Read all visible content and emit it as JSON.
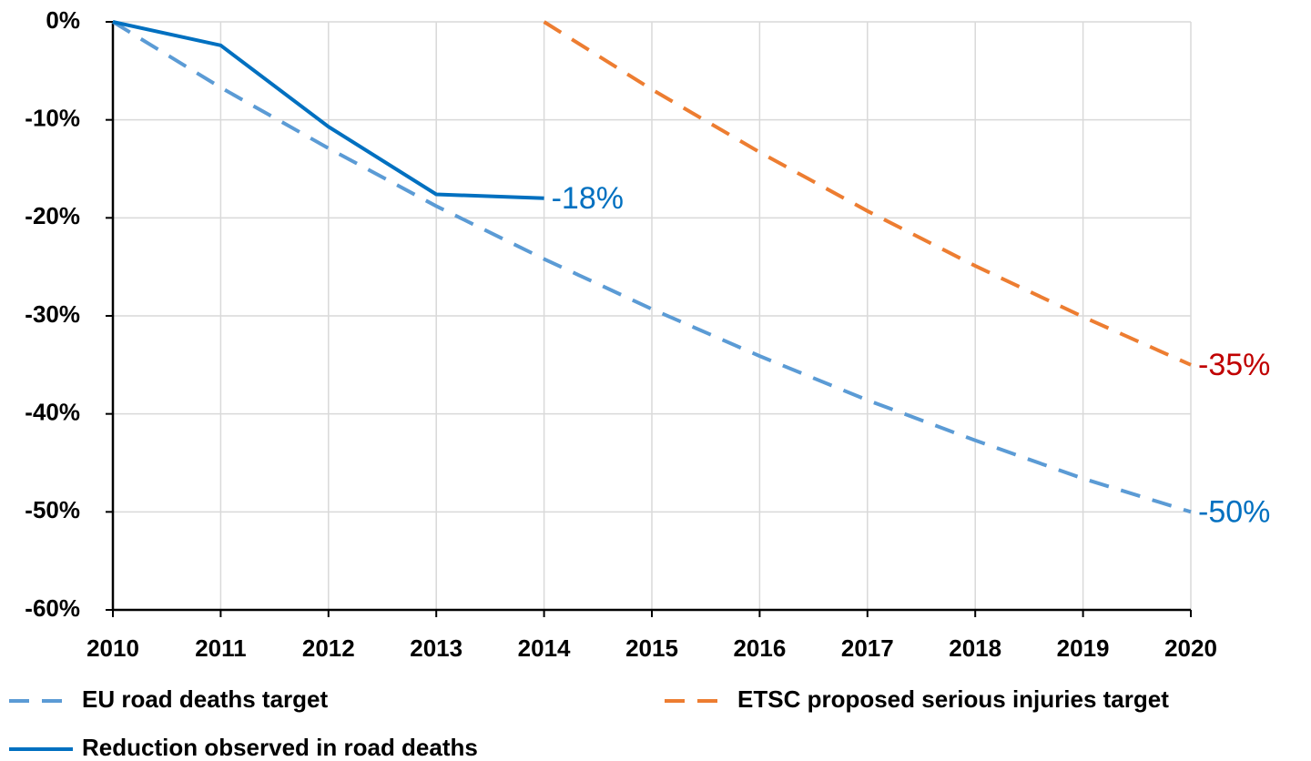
{
  "chart_data": {
    "type": "line",
    "x": [
      2010,
      2011,
      2012,
      2013,
      2014,
      2015,
      2016,
      2017,
      2018,
      2019,
      2020
    ],
    "xlim": [
      2010,
      2020
    ],
    "xticks": [
      2010,
      2011,
      2012,
      2013,
      2014,
      2015,
      2016,
      2017,
      2018,
      2019,
      2020
    ],
    "ylim": [
      -60,
      0
    ],
    "yticks": [
      {
        "value": 0,
        "label": "0%"
      },
      {
        "value": -10,
        "label": "-10%"
      },
      {
        "value": -20,
        "label": "-20%"
      },
      {
        "value": -30,
        "label": "-30%"
      },
      {
        "value": -40,
        "label": "-40%"
      },
      {
        "value": -50,
        "label": "-50%"
      },
      {
        "value": -60,
        "label": "-60%"
      }
    ],
    "grid": true,
    "series": [
      {
        "name": "EU road deaths target",
        "color": "#5b9bd5",
        "dash": true,
        "label_color": "#0070c0",
        "values": [
          0,
          -6.7,
          -12.9,
          -18.8,
          -24.2,
          -29.3,
          -34.1,
          -38.6,
          -42.7,
          -46.6,
          -50
        ],
        "value_labels": [
          null,
          null,
          null,
          null,
          null,
          null,
          null,
          null,
          null,
          null,
          "-50%"
        ]
      },
      {
        "name": "ETSC proposed serious injuries target",
        "color": "#ed7d31",
        "dash": true,
        "label_color": "#c00000",
        "values": [
          null,
          null,
          null,
          null,
          0,
          -6.9,
          -13.3,
          -19.3,
          -24.9,
          -30.1,
          -35
        ],
        "value_labels": [
          null,
          null,
          null,
          null,
          null,
          null,
          null,
          null,
          null,
          null,
          "-35%"
        ]
      },
      {
        "name": "Reduction observed in road deaths",
        "color": "#0070c0",
        "dash": false,
        "label_color": "#0070c0",
        "values": [
          0,
          -2.4,
          -10.7,
          -17.6,
          -18,
          null,
          null,
          null,
          null,
          null,
          null
        ],
        "value_labels": [
          null,
          null,
          null,
          null,
          "-18%",
          null,
          null,
          null,
          null,
          null,
          null
        ]
      }
    ]
  }
}
